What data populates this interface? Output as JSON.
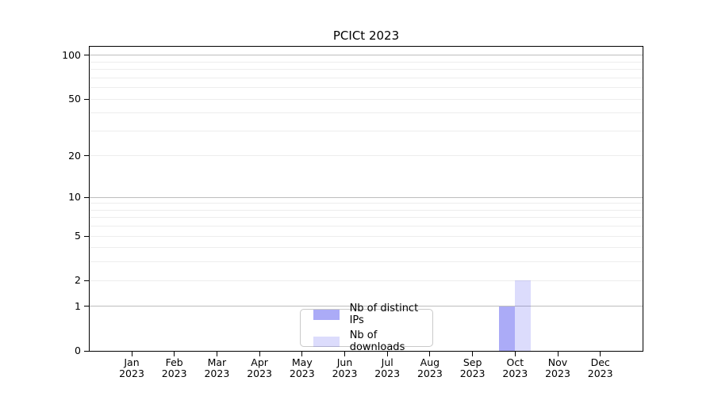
{
  "chart_data": {
    "type": "bar",
    "title": "PCICt 2023",
    "categories": [
      {
        "month": "Jan",
        "year": "2023"
      },
      {
        "month": "Feb",
        "year": "2023"
      },
      {
        "month": "Mar",
        "year": "2023"
      },
      {
        "month": "Apr",
        "year": "2023"
      },
      {
        "month": "May",
        "year": "2023"
      },
      {
        "month": "Jun",
        "year": "2023"
      },
      {
        "month": "Jul",
        "year": "2023"
      },
      {
        "month": "Aug",
        "year": "2023"
      },
      {
        "month": "Sep",
        "year": "2023"
      },
      {
        "month": "Oct",
        "year": "2023"
      },
      {
        "month": "Nov",
        "year": "2023"
      },
      {
        "month": "Dec",
        "year": "2023"
      }
    ],
    "series": [
      {
        "name": "Nb of distinct IPs",
        "color": "rgba(68,68,238,0.45)",
        "values": [
          0,
          0,
          0,
          0,
          0,
          0,
          0,
          0,
          0,
          1,
          0,
          0
        ]
      },
      {
        "name": "Nb of downloads",
        "color": "rgba(68,68,238,0.19)",
        "values": [
          0,
          0,
          0,
          0,
          0,
          0,
          0,
          0,
          0,
          2,
          0,
          0
        ]
      }
    ],
    "y_axis": {
      "scale": "log1p",
      "ticks": [
        0,
        1,
        2,
        5,
        10,
        20,
        50,
        100
      ],
      "major_gridlines": [
        1,
        10,
        100
      ],
      "minor_gridlines": [
        2,
        3,
        4,
        5,
        6,
        7,
        8,
        9,
        20,
        30,
        40,
        50,
        60,
        70,
        80,
        90
      ],
      "ylim": [
        0,
        115
      ]
    },
    "grid": true,
    "legend_position": "bottom-center"
  },
  "colors": {
    "major_grid": "#bdbdbd",
    "minor_grid": "#ededed",
    "axis": "#000000",
    "legend_border": "#c9c9c9"
  }
}
